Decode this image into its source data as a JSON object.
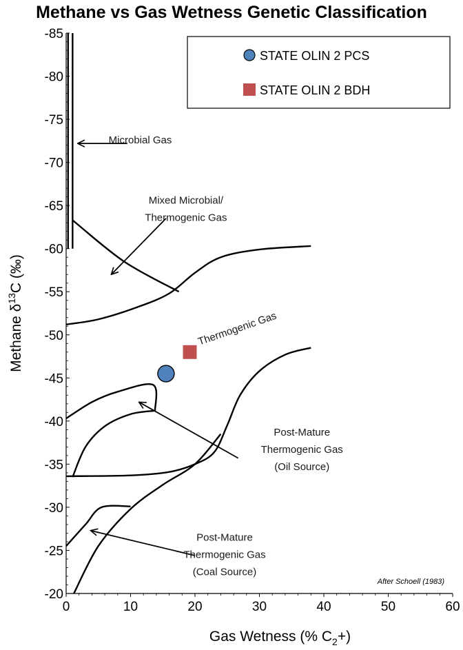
{
  "chart_data": {
    "type": "scatter",
    "title": "Methane vs Gas Wetness Genetic Classification",
    "xlabel": {
      "main": "Gas Wetness (% C",
      "sub": "2",
      "tail": "+)"
    },
    "ylabel": {
      "main": "Methane  δ",
      "sup": "13",
      "tail": "C (‰)"
    },
    "xlim": [
      0,
      60
    ],
    "ylim": [
      -20,
      -85
    ],
    "xticks": [
      "0",
      "10",
      "20",
      "30",
      "40",
      "50",
      "60"
    ],
    "yticks": [
      "-85",
      "-80",
      "-75",
      "-70",
      "-65",
      "-60",
      "-55",
      "-50",
      "-45",
      "-40",
      "-35",
      "-30",
      "-25",
      "-20"
    ],
    "series": [
      {
        "name": "STATE OLIN 2 PCS",
        "marker": "circle",
        "color": "#4f81bd",
        "points": [
          [
            15.5,
            -45.5
          ]
        ]
      },
      {
        "name": "STATE OLIN 2 BDH",
        "marker": "square",
        "color": "#c0504d",
        "points": [
          [
            19.2,
            -48
          ]
        ]
      }
    ],
    "field_boundaries": [
      [
        [
          0.3,
          -60
        ],
        [
          0.3,
          -85
        ]
      ],
      [
        [
          1,
          -60
        ],
        [
          1,
          -85
        ]
      ],
      [
        [
          1,
          -63.3
        ],
        [
          9,
          -58.5
        ],
        [
          17.5,
          -55
        ]
      ],
      [
        [
          0,
          -51.2
        ],
        [
          5,
          -51.8
        ],
        [
          11,
          -53.2
        ],
        [
          16,
          -54.8
        ],
        [
          20,
          -57.2
        ],
        [
          24,
          -59
        ],
        [
          30,
          -59.9
        ],
        [
          38,
          -60.3
        ]
      ],
      [
        [
          0,
          -40.3
        ],
        [
          4,
          -42.2
        ],
        [
          8,
          -43.4
        ],
        [
          13.5,
          -44.2
        ],
        [
          13.8,
          -41.2
        ]
      ],
      [
        [
          1,
          -33.5
        ],
        [
          3,
          -37
        ],
        [
          6,
          -39.4
        ],
        [
          10,
          -40.8
        ],
        [
          13.8,
          -41.2
        ]
      ],
      [
        [
          0,
          -33.6
        ],
        [
          10,
          -33.7
        ],
        [
          16,
          -34.1
        ],
        [
          20,
          -35
        ],
        [
          23,
          -36.4
        ],
        [
          25,
          -39.5
        ],
        [
          27,
          -43
        ],
        [
          30,
          -45.8
        ],
        [
          34,
          -47.7
        ],
        [
          38,
          -48.5
        ]
      ],
      [
        [
          0,
          -25.5
        ],
        [
          3,
          -28
        ],
        [
          5.5,
          -30
        ],
        [
          10,
          -30.1
        ]
      ],
      [
        [
          1.2,
          -20
        ],
        [
          5,
          -25.5
        ],
        [
          10,
          -29.8
        ],
        [
          15,
          -32.6
        ],
        [
          20,
          -35
        ],
        [
          24,
          -38.5
        ]
      ]
    ],
    "annotations": [
      {
        "lines": [
          "Microbial Gas"
        ],
        "x": 11.5,
        "y": -72.2,
        "anchor": "middle",
        "arrow_from": [
          9.5,
          -72.2
        ],
        "arrow_to": [
          1.8,
          -72.2
        ]
      },
      {
        "lines": [
          "Mixed Microbial/",
          "Thermogenic Gas"
        ],
        "x": 18.6,
        "y": -65.2,
        "anchor": "middle",
        "arrow_from": [
          15.5,
          -63.5
        ],
        "arrow_to": [
          7,
          -57
        ]
      },
      {
        "lines": [
          "Thermogenic Gas"
        ],
        "x": 20.7,
        "y": -48.8,
        "anchor": "start",
        "rotate": -19
      },
      {
        "lines": [
          "Post-Mature",
          "Thermogenic Gas",
          "(Oil Source)"
        ],
        "x": 36.6,
        "y": -38.3,
        "anchor": "middle",
        "arrow_from": [
          26.7,
          -35.7
        ],
        "arrow_to": [
          11.3,
          -42.2
        ]
      },
      {
        "lines": [
          "Post-Mature",
          "Thermogenic Gas",
          "(Coal Source)"
        ],
        "x": 24.6,
        "y": -26.1,
        "anchor": "middle",
        "arrow_from": [
          20,
          -24.4
        ],
        "arrow_to": [
          3.8,
          -27.3
        ]
      }
    ],
    "credit": "After Schoell (1983)",
    "legend": "top-right",
    "grid": false
  }
}
